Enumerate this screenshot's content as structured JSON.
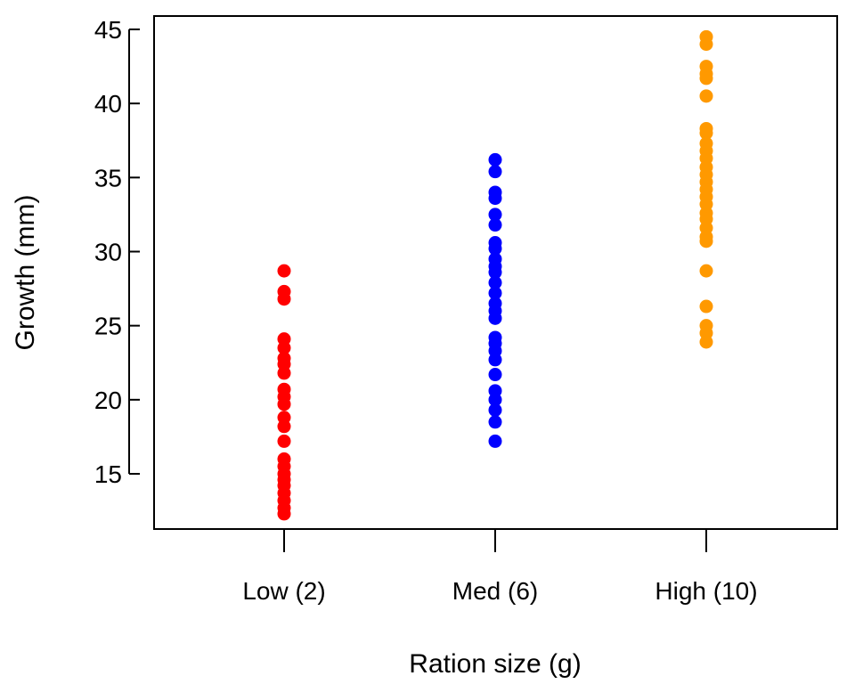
{
  "chart_data": {
    "type": "scatter",
    "title": "",
    "xlabel": "Ration size (g)",
    "ylabel": "Growth (mm)",
    "categories": [
      "Low (2)",
      "Med (6)",
      "High (10)"
    ],
    "ylim": [
      11.5,
      46.2
    ],
    "yticks": [
      15,
      20,
      25,
      30,
      35,
      40,
      45
    ],
    "grid": false,
    "legend": "none",
    "series": [
      {
        "category": "Low (2)",
        "color": "#ff0000",
        "values": [
          28.7,
          27.3,
          26.8,
          24.1,
          23.5,
          22.8,
          22.4,
          21.8,
          20.7,
          20.2,
          19.7,
          18.8,
          18.2,
          17.2,
          16.0,
          15.5,
          15.0,
          14.6,
          14.2,
          13.7,
          13.2,
          12.7,
          12.3
        ]
      },
      {
        "category": "Med (6)",
        "color": "#0000ff",
        "values": [
          36.2,
          35.4,
          34.0,
          33.6,
          32.5,
          31.8,
          30.6,
          30.2,
          29.5,
          29.0,
          28.6,
          27.9,
          27.2,
          26.5,
          26.0,
          25.5,
          24.2,
          23.8,
          23.3,
          22.7,
          21.7,
          20.6,
          20.0,
          19.3,
          18.5,
          17.2
        ]
      },
      {
        "category": "High (10)",
        "color": "#ff9900",
        "values": [
          44.5,
          44.0,
          42.5,
          42.0,
          41.7,
          40.5,
          38.3,
          38.0,
          37.3,
          36.8,
          36.3,
          35.7,
          35.2,
          34.7,
          34.2,
          33.7,
          33.2,
          32.6,
          32.2,
          31.6,
          31.0,
          30.7,
          28.7,
          26.3,
          25.0,
          24.5,
          23.9
        ]
      }
    ]
  }
}
